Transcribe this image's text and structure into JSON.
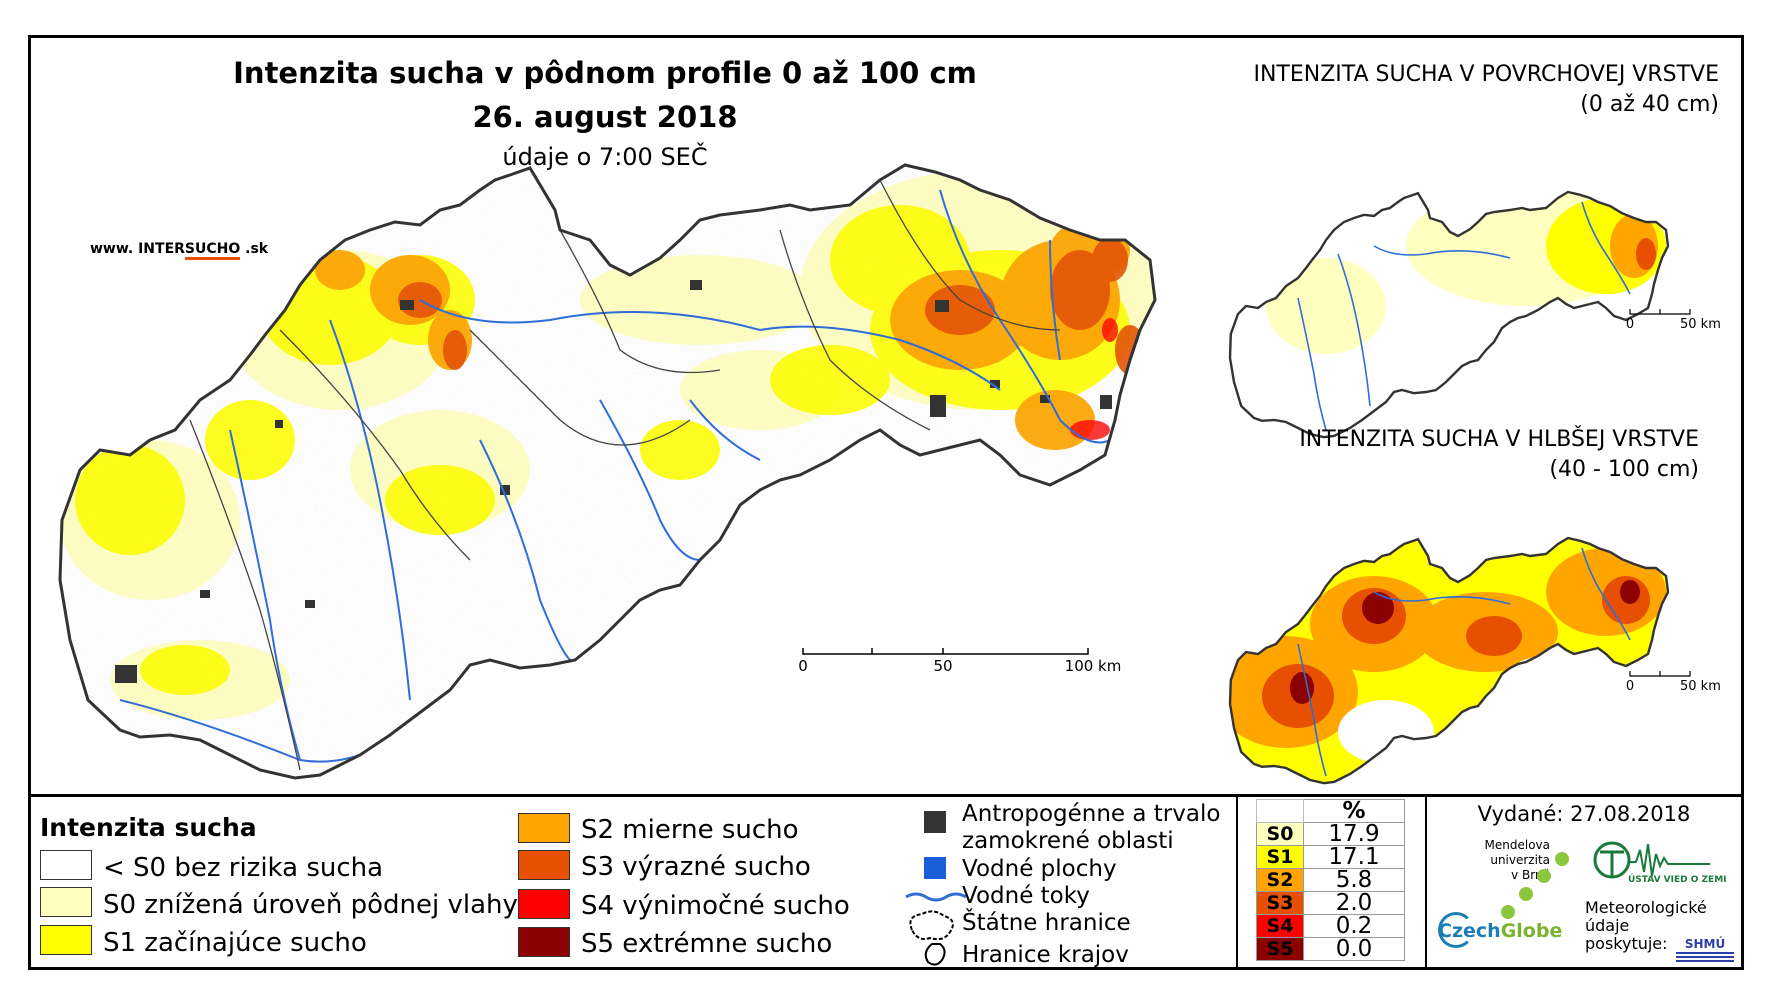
{
  "title": {
    "line1": "Intenzita sucha v pôdnom profile 0 až 100 cm",
    "line2": "26. august 2018",
    "line3": "údaje o 7:00 SEČ"
  },
  "website": {
    "prefix": "www. INTER",
    "accent": "SUCHO",
    "suffix": " .sk"
  },
  "inset_top": {
    "title": "INTENZITA SUCHA V POVRCHOVEJ VRSTVE",
    "subtitle": "(0 až 40 cm)",
    "scale": {
      "zero": "0",
      "end": "50 km"
    }
  },
  "inset_bottom": {
    "title": "INTENZITA SUCHA V HLBŠEJ VRSTVE",
    "subtitle": "(40 - 100 cm)",
    "scale": {
      "zero": "0",
      "end": "50 km"
    }
  },
  "main_scale": {
    "zero": "0",
    "mid": "50",
    "end": "100 km"
  },
  "legend": {
    "title": "Intenzita sucha",
    "classes": [
      {
        "label": "< S0 bez rizika sucha",
        "color": "#ffffff"
      },
      {
        "label": "S0 znížená úroveň pôdnej vlahy",
        "color": "#ffffc0"
      },
      {
        "label": "S1 začínajúce sucho",
        "color": "#ffff00"
      },
      {
        "label": "S2 mierne sucho",
        "color": "#ffa500"
      },
      {
        "label": "S3 výrazné sucho",
        "color": "#e65000"
      },
      {
        "label": "S4 výnimočné sucho",
        "color": "#ff0000"
      },
      {
        "label": "S5 extrémne sucho",
        "color": "#8b0000"
      }
    ],
    "symbols": [
      {
        "label": "Antropogénne a trvalo\nzamokrené oblasti",
        "icon": "dark-square-icon"
      },
      {
        "label": "Vodné plochy",
        "icon": "blue-square-icon"
      },
      {
        "label": "Vodné toky",
        "icon": "river-line-icon"
      },
      {
        "label": "Štátne hranice",
        "icon": "state-border-icon"
      },
      {
        "label": "Hranice krajov",
        "icon": "region-border-icon"
      }
    ]
  },
  "percent_table": {
    "header": "%",
    "rows": [
      {
        "class": "S0",
        "value": "17.9",
        "color": "#ffffc0"
      },
      {
        "class": "S1",
        "value": "17.1",
        "color": "#ffff00"
      },
      {
        "class": "S2",
        "value": "5.8",
        "color": "#ffa500"
      },
      {
        "class": "S3",
        "value": "2.0",
        "color": "#e65000"
      },
      {
        "class": "S4",
        "value": "0.2",
        "color": "#ff0000"
      },
      {
        "class": "S5",
        "value": "0.0",
        "color": "#8b0000"
      }
    ]
  },
  "issued": "Vydané: 27.08.2018",
  "logos": {
    "mendel": "Mendelova\nuniverzita\nv Brně",
    "czechglobe_a": "Czech",
    "czechglobe_b": "Globe",
    "ustav": "ÚSTAV VIED O ZEMI",
    "meteo": "Meteorologické\núdaje\nposkytuje:",
    "shmu": "SHMÚ"
  }
}
